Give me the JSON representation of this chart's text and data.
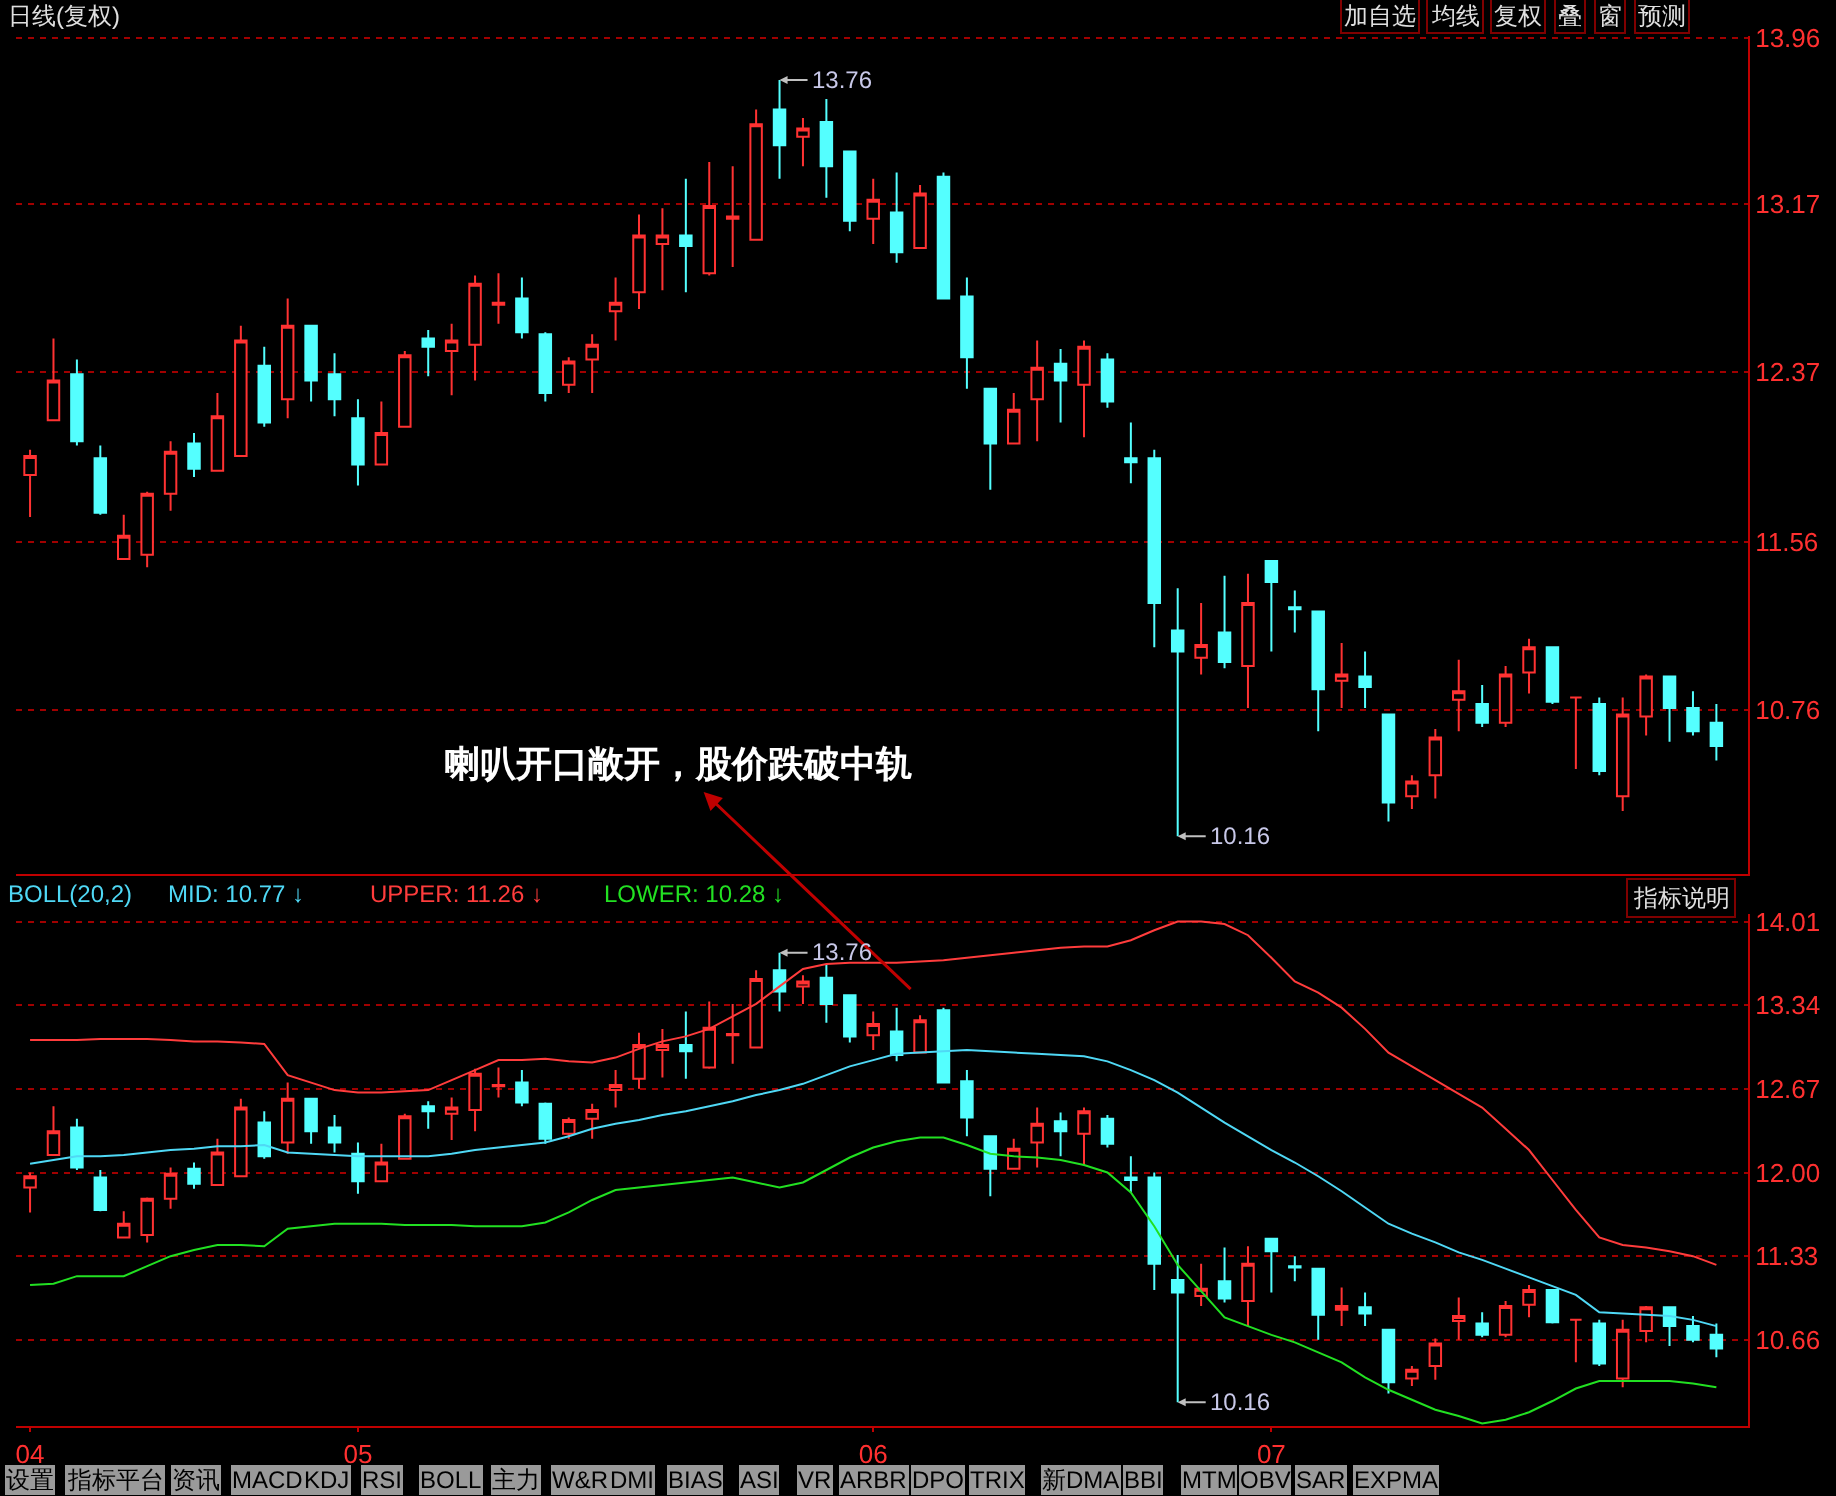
{
  "chart_data": [
    {
      "type": "candlestick",
      "title": "日线(复权)",
      "categories": [
        "04",
        null,
        null,
        null,
        null,
        null,
        null,
        null,
        null,
        null,
        null,
        null,
        null,
        null,
        "05",
        null,
        null,
        null,
        null,
        null,
        null,
        null,
        null,
        null,
        null,
        null,
        null,
        null,
        null,
        null,
        null,
        null,
        null,
        null,
        null,
        null,
        "06",
        null,
        null,
        null,
        null,
        null,
        null,
        null,
        null,
        null,
        null,
        null,
        null,
        null,
        null,
        null,
        null,
        "07",
        null,
        null,
        null,
        null,
        null,
        null,
        null,
        null,
        null,
        null,
        null,
        null,
        null,
        null,
        null,
        null,
        null,
        null,
        null
      ],
      "ohlc": [
        [
          11.88,
          12.0,
          11.68,
          11.97
        ],
        [
          12.14,
          12.53,
          12.14,
          12.33
        ],
        [
          12.36,
          12.43,
          12.02,
          12.04
        ],
        [
          11.96,
          12.02,
          11.69,
          11.7
        ],
        [
          11.48,
          11.69,
          11.48,
          11.59
        ],
        [
          11.5,
          11.8,
          11.44,
          11.79
        ],
        [
          11.79,
          12.04,
          11.71,
          11.99
        ],
        [
          12.03,
          12.08,
          11.87,
          11.91
        ],
        [
          11.9,
          12.27,
          11.9,
          12.16
        ],
        [
          11.97,
          12.59,
          11.97,
          12.52
        ],
        [
          12.4,
          12.49,
          12.11,
          12.13
        ],
        [
          12.24,
          12.72,
          12.15,
          12.59
        ],
        [
          12.59,
          12.59,
          12.23,
          12.33
        ],
        [
          12.36,
          12.46,
          12.16,
          12.24
        ],
        [
          12.15,
          12.24,
          11.83,
          11.93
        ],
        [
          11.93,
          12.23,
          11.93,
          12.08
        ],
        [
          12.11,
          12.47,
          12.11,
          12.45
        ],
        [
          12.53,
          12.57,
          12.35,
          12.49
        ],
        [
          12.47,
          12.6,
          12.26,
          12.52
        ],
        [
          12.5,
          12.83,
          12.33,
          12.79
        ],
        [
          12.69,
          12.84,
          12.6,
          12.7
        ],
        [
          12.72,
          12.82,
          12.53,
          12.56
        ],
        [
          12.55,
          12.56,
          12.23,
          12.27
        ],
        [
          12.31,
          12.44,
          12.27,
          12.42
        ],
        [
          12.43,
          12.55,
          12.27,
          12.5
        ],
        [
          12.66,
          12.82,
          12.52,
          12.7
        ],
        [
          12.75,
          13.12,
          12.67,
          13.02
        ],
        [
          12.98,
          13.15,
          12.76,
          13.02
        ],
        [
          13.02,
          13.29,
          12.75,
          12.97
        ],
        [
          12.84,
          13.37,
          12.83,
          13.16
        ],
        [
          13.1,
          13.35,
          12.87,
          13.11
        ],
        [
          13.0,
          13.62,
          13.0,
          13.55
        ],
        [
          13.62,
          13.76,
          13.29,
          13.45
        ],
        [
          13.49,
          13.58,
          13.35,
          13.53
        ],
        [
          13.56,
          13.67,
          13.2,
          13.35
        ],
        [
          13.42,
          13.42,
          13.04,
          13.09
        ],
        [
          13.1,
          13.29,
          12.98,
          13.19
        ],
        [
          13.13,
          13.32,
          12.89,
          12.94
        ],
        [
          12.96,
          13.26,
          12.96,
          13.22
        ],
        [
          13.3,
          13.32,
          12.72,
          12.72
        ],
        [
          12.73,
          12.82,
          12.29,
          12.44
        ],
        [
          12.29,
          12.29,
          11.81,
          12.03
        ],
        [
          12.03,
          12.27,
          12.03,
          12.19
        ],
        [
          12.24,
          12.52,
          12.04,
          12.39
        ],
        [
          12.41,
          12.48,
          12.13,
          12.33
        ],
        [
          12.31,
          12.52,
          12.06,
          12.49
        ],
        [
          12.43,
          12.46,
          12.2,
          12.23
        ],
        [
          11.96,
          12.13,
          11.84,
          11.94
        ],
        [
          11.96,
          12.0,
          11.06,
          11.27
        ],
        [
          11.14,
          11.34,
          10.16,
          11.04
        ],
        [
          11.01,
          11.27,
          10.93,
          11.07
        ],
        [
          11.13,
          11.4,
          10.96,
          10.99
        ],
        [
          10.97,
          11.41,
          10.77,
          11.27
        ],
        [
          11.47,
          11.47,
          11.04,
          11.37
        ],
        [
          11.25,
          11.33,
          11.13,
          11.24
        ],
        [
          11.23,
          11.23,
          10.66,
          10.86
        ],
        [
          10.9,
          11.08,
          10.77,
          10.93
        ],
        [
          10.92,
          11.04,
          10.77,
          10.87
        ],
        [
          10.74,
          10.74,
          10.23,
          10.32
        ],
        [
          10.35,
          10.45,
          10.29,
          10.42
        ],
        [
          10.45,
          10.67,
          10.34,
          10.63
        ],
        [
          10.81,
          11.0,
          10.66,
          10.85
        ],
        [
          10.79,
          10.88,
          10.68,
          10.7
        ],
        [
          10.7,
          10.97,
          10.68,
          10.93
        ],
        [
          10.94,
          11.1,
          10.84,
          11.06
        ],
        [
          11.06,
          11.06,
          10.79,
          10.8
        ],
        [
          10.82,
          10.82,
          10.48,
          10.82
        ],
        [
          10.79,
          10.82,
          10.45,
          10.47
        ],
        [
          10.35,
          10.82,
          10.28,
          10.74
        ],
        [
          10.73,
          10.93,
          10.64,
          10.92
        ],
        [
          10.92,
          10.92,
          10.61,
          10.77
        ],
        [
          10.77,
          10.85,
          10.64,
          10.66
        ],
        [
          10.7,
          10.79,
          10.52,
          10.59
        ]
      ],
      "ylim": [
        9.98,
        13.97
      ],
      "yticks": [
        13.96,
        13.17,
        12.37,
        11.56,
        10.76
      ],
      "grid": "y",
      "tick_labels": "y",
      "annotations": [
        "13.76",
        "10.16",
        "喇叭开口敞开，股价跌破中轨",
        "加自选",
        "均线",
        "复权",
        "叠",
        "窗",
        "预测"
      ]
    },
    {
      "type": "candlestick",
      "title": "BOLL(20,2)",
      "categories": [
        "04",
        null,
        null,
        null,
        null,
        null,
        null,
        null,
        null,
        null,
        null,
        null,
        null,
        null,
        "05",
        null,
        null,
        null,
        null,
        null,
        null,
        null,
        null,
        null,
        null,
        null,
        null,
        null,
        null,
        null,
        null,
        null,
        null,
        null,
        null,
        null,
        "06",
        null,
        null,
        null,
        null,
        null,
        null,
        null,
        null,
        null,
        null,
        null,
        null,
        null,
        null,
        null,
        null,
        "07",
        null,
        null,
        null,
        null,
        null,
        null,
        null,
        null,
        null,
        null,
        null,
        null,
        null,
        null,
        null,
        null,
        null,
        null,
        null
      ],
      "ohlc": [
        [
          11.88,
          12.0,
          11.68,
          11.97
        ],
        [
          12.14,
          12.53,
          12.14,
          12.33
        ],
        [
          12.36,
          12.43,
          12.02,
          12.04
        ],
        [
          11.96,
          12.02,
          11.69,
          11.7
        ],
        [
          11.48,
          11.69,
          11.48,
          11.59
        ],
        [
          11.5,
          11.8,
          11.44,
          11.79
        ],
        [
          11.79,
          12.04,
          11.71,
          11.99
        ],
        [
          12.03,
          12.08,
          11.87,
          11.91
        ],
        [
          11.9,
          12.27,
          11.9,
          12.16
        ],
        [
          11.97,
          12.59,
          11.97,
          12.52
        ],
        [
          12.4,
          12.49,
          12.11,
          12.13
        ],
        [
          12.24,
          12.72,
          12.15,
          12.59
        ],
        [
          12.59,
          12.59,
          12.23,
          12.33
        ],
        [
          12.36,
          12.46,
          12.16,
          12.24
        ],
        [
          12.15,
          12.24,
          11.83,
          11.93
        ],
        [
          11.93,
          12.23,
          11.93,
          12.08
        ],
        [
          12.11,
          12.47,
          12.11,
          12.45
        ],
        [
          12.53,
          12.57,
          12.35,
          12.49
        ],
        [
          12.47,
          12.6,
          12.26,
          12.52
        ],
        [
          12.5,
          12.83,
          12.33,
          12.79
        ],
        [
          12.69,
          12.84,
          12.6,
          12.7
        ],
        [
          12.72,
          12.82,
          12.53,
          12.56
        ],
        [
          12.55,
          12.56,
          12.23,
          12.27
        ],
        [
          12.31,
          12.44,
          12.27,
          12.42
        ],
        [
          12.43,
          12.55,
          12.27,
          12.5
        ],
        [
          12.66,
          12.82,
          12.52,
          12.7
        ],
        [
          12.75,
          13.12,
          12.67,
          13.02
        ],
        [
          12.98,
          13.15,
          12.76,
          13.02
        ],
        [
          13.02,
          13.29,
          12.75,
          12.97
        ],
        [
          12.84,
          13.37,
          12.83,
          13.16
        ],
        [
          13.1,
          13.35,
          12.87,
          13.11
        ],
        [
          13.0,
          13.62,
          13.0,
          13.55
        ],
        [
          13.62,
          13.76,
          13.29,
          13.45
        ],
        [
          13.49,
          13.58,
          13.35,
          13.53
        ],
        [
          13.56,
          13.67,
          13.2,
          13.35
        ],
        [
          13.42,
          13.42,
          13.04,
          13.09
        ],
        [
          13.1,
          13.29,
          12.98,
          13.19
        ],
        [
          13.13,
          13.32,
          12.89,
          12.94
        ],
        [
          12.96,
          13.26,
          12.96,
          13.22
        ],
        [
          13.3,
          13.32,
          12.72,
          12.72
        ],
        [
          12.73,
          12.82,
          12.29,
          12.44
        ],
        [
          12.29,
          12.29,
          11.81,
          12.03
        ],
        [
          12.03,
          12.27,
          12.03,
          12.19
        ],
        [
          12.24,
          12.52,
          12.04,
          12.39
        ],
        [
          12.41,
          12.48,
          12.13,
          12.33
        ],
        [
          12.31,
          12.52,
          12.06,
          12.49
        ],
        [
          12.43,
          12.46,
          12.2,
          12.23
        ],
        [
          11.96,
          12.13,
          11.84,
          11.94
        ],
        [
          11.96,
          12.0,
          11.06,
          11.27
        ],
        [
          11.14,
          11.34,
          10.16,
          11.04
        ],
        [
          11.01,
          11.27,
          10.93,
          11.07
        ],
        [
          11.13,
          11.4,
          10.96,
          10.99
        ],
        [
          10.97,
          11.41,
          10.77,
          11.27
        ],
        [
          11.47,
          11.47,
          11.04,
          11.37
        ],
        [
          11.25,
          11.33,
          11.13,
          11.24
        ],
        [
          11.23,
          11.23,
          10.66,
          10.86
        ],
        [
          10.9,
          11.08,
          10.77,
          10.93
        ],
        [
          10.92,
          11.04,
          10.77,
          10.87
        ],
        [
          10.74,
          10.74,
          10.23,
          10.32
        ],
        [
          10.35,
          10.45,
          10.29,
          10.42
        ],
        [
          10.45,
          10.67,
          10.34,
          10.63
        ],
        [
          10.81,
          11.0,
          10.66,
          10.85
        ],
        [
          10.79,
          10.88,
          10.68,
          10.7
        ],
        [
          10.7,
          10.97,
          10.68,
          10.93
        ],
        [
          10.94,
          11.1,
          10.84,
          11.06
        ],
        [
          11.06,
          11.06,
          10.79,
          10.8
        ],
        [
          10.82,
          10.82,
          10.48,
          10.82
        ],
        [
          10.79,
          10.82,
          10.45,
          10.47
        ],
        [
          10.35,
          10.82,
          10.28,
          10.74
        ],
        [
          10.73,
          10.93,
          10.64,
          10.92
        ],
        [
          10.92,
          10.92,
          10.61,
          10.77
        ],
        [
          10.77,
          10.85,
          10.64,
          10.66
        ],
        [
          10.7,
          10.79,
          10.52,
          10.59
        ]
      ],
      "series": [
        {
          "name": "MID: 10.77 ↓",
          "type": "line",
          "color": "#4fd8f5",
          "values": [
            12.07,
            12.1,
            12.13,
            12.13,
            12.14,
            12.16,
            12.18,
            12.19,
            12.21,
            12.21,
            12.22,
            12.16,
            12.15,
            12.14,
            12.13,
            12.13,
            12.13,
            12.13,
            12.15,
            12.18,
            12.2,
            12.22,
            12.24,
            12.29,
            12.35,
            12.39,
            12.42,
            12.46,
            12.49,
            12.53,
            12.57,
            12.62,
            12.66,
            12.71,
            12.78,
            12.85,
            12.9,
            12.95,
            12.96,
            12.97,
            12.98,
            12.97,
            12.96,
            12.95,
            12.94,
            12.93,
            12.89,
            12.82,
            12.74,
            12.64,
            12.52,
            12.4,
            12.29,
            12.18,
            12.08,
            11.97,
            11.85,
            11.72,
            11.59,
            11.51,
            11.44,
            11.36,
            11.3,
            11.23,
            11.16,
            11.09,
            11.02,
            10.88,
            10.87,
            10.86,
            10.85,
            10.82,
            10.77
          ]
        },
        {
          "name": "UPPER: 11.26 ↓",
          "type": "line",
          "color": "#ff3c3c",
          "values": [
            13.06,
            13.06,
            13.06,
            13.07,
            13.07,
            13.07,
            13.06,
            13.05,
            13.05,
            13.04,
            13.03,
            12.78,
            12.72,
            12.66,
            12.64,
            12.64,
            12.65,
            12.66,
            12.74,
            12.82,
            12.9,
            12.9,
            12.91,
            12.89,
            12.88,
            12.92,
            12.99,
            13.05,
            13.09,
            13.15,
            13.25,
            13.35,
            13.49,
            13.63,
            13.67,
            13.68,
            13.68,
            13.68,
            13.69,
            13.7,
            13.72,
            13.74,
            13.76,
            13.78,
            13.8,
            13.81,
            13.81,
            13.86,
            13.94,
            14.01,
            14.01,
            13.99,
            13.9,
            13.72,
            13.53,
            13.44,
            13.32,
            13.15,
            12.96,
            12.85,
            12.74,
            12.63,
            12.52,
            12.35,
            12.18,
            11.94,
            11.7,
            11.48,
            11.42,
            11.4,
            11.37,
            11.33,
            11.26
          ]
        },
        {
          "name": "LOWER: 10.28 ↓",
          "type": "line",
          "color": "#22e022",
          "values": [
            11.1,
            11.11,
            11.17,
            11.17,
            11.17,
            11.25,
            11.33,
            11.38,
            11.42,
            11.42,
            11.41,
            11.55,
            11.57,
            11.59,
            11.59,
            11.59,
            11.58,
            11.58,
            11.58,
            11.57,
            11.57,
            11.57,
            11.6,
            11.68,
            11.78,
            11.86,
            11.88,
            11.9,
            11.92,
            11.94,
            11.96,
            11.92,
            11.88,
            11.92,
            12.02,
            12.12,
            12.2,
            12.25,
            12.28,
            12.28,
            12.22,
            12.15,
            12.13,
            12.12,
            12.1,
            12.06,
            12.0,
            11.84,
            11.57,
            11.26,
            11.05,
            10.84,
            10.77,
            10.7,
            10.64,
            10.56,
            10.48,
            10.36,
            10.26,
            10.18,
            10.1,
            10.05,
            9.99,
            10.02,
            10.08,
            10.17,
            10.27,
            10.33,
            10.33,
            10.33,
            10.33,
            10.31,
            10.28
          ]
        }
      ],
      "ylim": [
        9.97,
        14.07
      ],
      "yticks": [
        14.01,
        13.34,
        12.67,
        {
          "value": 12.0,
          "label": "12.00"
        },
        11.33,
        10.66
      ],
      "grid": "y",
      "annotations": [
        {
          "text": "13.76",
          "y": 13.76
        },
        "10.16",
        "指标说明",
        "设置",
        "指标平台",
        "资讯",
        "MACD",
        "KDJ",
        "RSI",
        "BOLL",
        "主力",
        "W&R",
        "DMI",
        "BIAS",
        "ASI",
        "VR",
        "ARBR",
        "DPO",
        "TRIX",
        "新DMA",
        "BBI",
        "MTM",
        "OBV",
        "SAR",
        "EXPMA"
      ]
    }
  ]
}
